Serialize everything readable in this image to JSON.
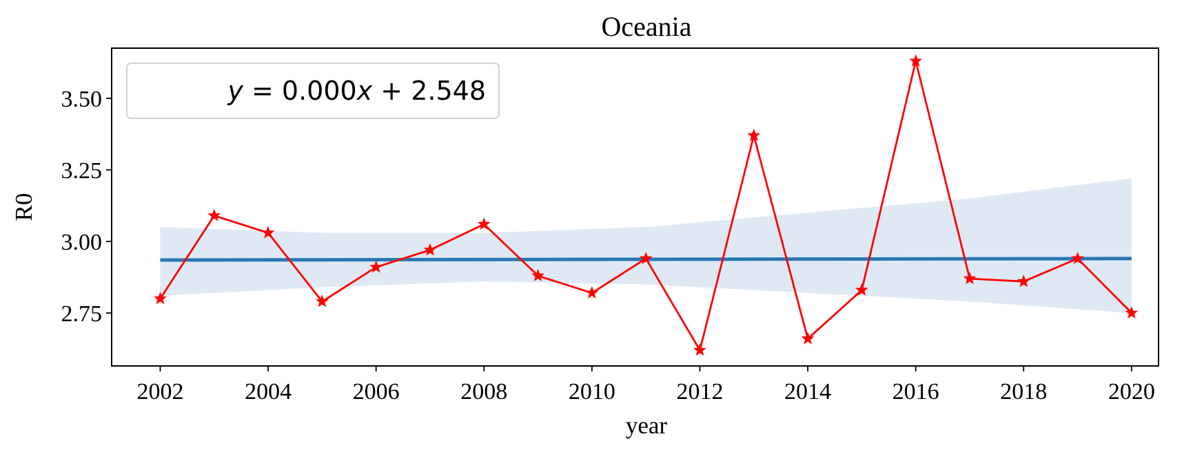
{
  "chart_data": {
    "type": "line",
    "title": "Oceania",
    "xlabel": "year",
    "ylabel": "R0",
    "xlim": [
      2001.1,
      2020.5
    ],
    "ylim": [
      2.565,
      3.675
    ],
    "xticks": [
      2002,
      2004,
      2006,
      2008,
      2010,
      2012,
      2014,
      2016,
      2018,
      2020
    ],
    "yticks": [
      2.75,
      3.0,
      3.25,
      3.5
    ],
    "ytick_labels": [
      "2.75",
      "3.00",
      "3.25",
      "3.50"
    ],
    "legend": {
      "placement": "top-left",
      "text": "y = 0.000x + 2.548",
      "equation": {
        "var": "y",
        "slope": "0.000",
        "xvar": "x",
        "intercept": "2.548"
      }
    },
    "series": [
      {
        "name": "R0",
        "color": "#ff0000",
        "marker": "star",
        "x": [
          2002,
          2003,
          2004,
          2005,
          2006,
          2007,
          2008,
          2009,
          2010,
          2011,
          2012,
          2013,
          2014,
          2015,
          2016,
          2017,
          2018,
          2019,
          2020
        ],
        "y": [
          2.8,
          3.09,
          3.03,
          2.79,
          2.91,
          2.97,
          3.06,
          2.88,
          2.82,
          2.94,
          2.62,
          3.37,
          2.66,
          2.83,
          3.63,
          2.87,
          2.86,
          2.94,
          2.75
        ]
      }
    ],
    "regression": {
      "color": "#2a77b4",
      "band_color": "#dfe9f3",
      "x": [
        2002,
        2020
      ],
      "y": [
        2.935,
        2.94
      ],
      "band_x": [
        2002,
        2005,
        2008,
        2011,
        2014,
        2017,
        2020
      ],
      "band_upper": [
        3.05,
        3.03,
        3.03,
        3.05,
        3.1,
        3.15,
        3.22
      ],
      "band_lower": [
        2.81,
        2.84,
        2.86,
        2.85,
        2.82,
        2.79,
        2.75
      ]
    }
  }
}
